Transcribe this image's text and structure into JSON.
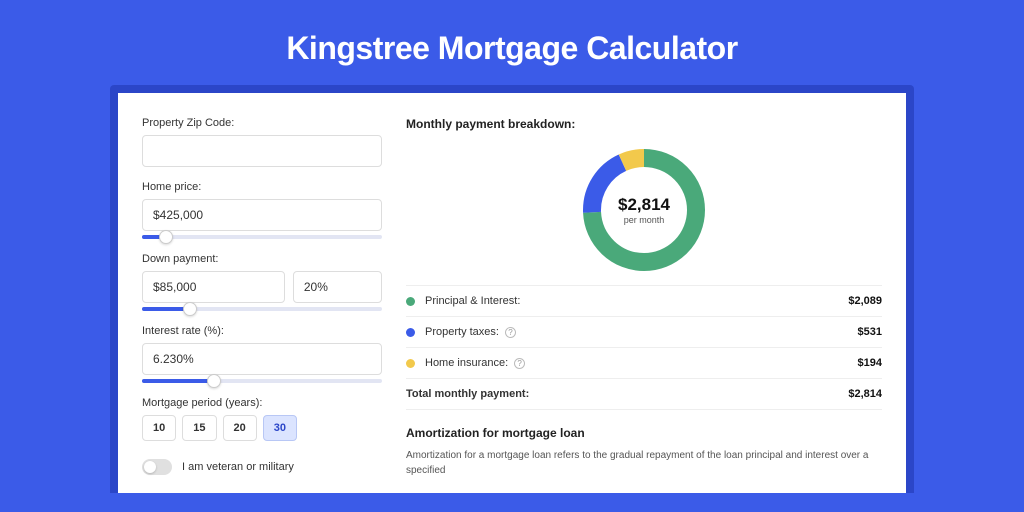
{
  "hero": {
    "title": "Kingstree Mortgage Calculator"
  },
  "form": {
    "zip": {
      "label": "Property Zip Code:",
      "value": ""
    },
    "homePrice": {
      "label": "Home price:",
      "value": "$425,000",
      "sliderPct": 10
    },
    "downPayment": {
      "label": "Down payment:",
      "value": "$85,000",
      "pct": "20%",
      "sliderPct": 20
    },
    "rate": {
      "label": "Interest rate (%):",
      "value": "6.230%",
      "sliderPct": 30
    },
    "period": {
      "label": "Mortgage period (years):",
      "options": [
        "10",
        "15",
        "20",
        "30"
      ],
      "active": "30"
    },
    "veteran": {
      "label": "I am veteran or military",
      "checked": false
    }
  },
  "breakdown": {
    "title": "Monthly payment breakdown:",
    "center": {
      "amount": "$2,814",
      "sub": "per month"
    },
    "donut": {
      "sizePx": 122,
      "strokePx": 18,
      "segments": [
        {
          "color": "#4aa97a",
          "pct": 74.2
        },
        {
          "color": "#3b5be8",
          "pct": 18.9
        },
        {
          "color": "#f2c94c",
          "pct": 6.9
        }
      ]
    },
    "items": [
      {
        "dot": "#4aa97a",
        "label": "Principal & Interest:",
        "value": "$2,089",
        "help": false
      },
      {
        "dot": "#3b5be8",
        "label": "Property taxes:",
        "value": "$531",
        "help": true
      },
      {
        "dot": "#f2c94c",
        "label": "Home insurance:",
        "value": "$194",
        "help": true
      }
    ],
    "total": {
      "label": "Total monthly payment:",
      "value": "$2,814"
    }
  },
  "amortization": {
    "title": "Amortization for mortgage loan",
    "text": "Amortization for a mortgage loan refers to the gradual repayment of the loan principal and interest over a specified"
  },
  "colors": {
    "brand": "#3b5be8",
    "brandDark": "#2b46c8",
    "green": "#4aa97a",
    "yellow": "#f2c94c"
  }
}
